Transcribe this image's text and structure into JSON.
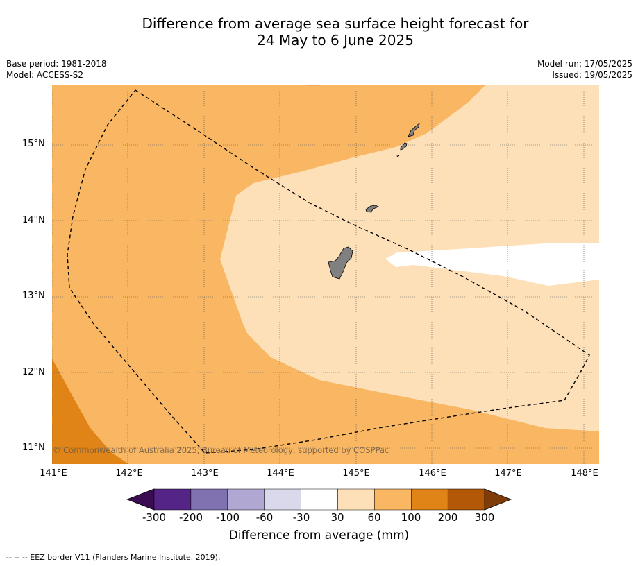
{
  "title_line1": "Difference from average sea surface height forecast for",
  "title_line2": "24 May to 6 June 2025",
  "meta": {
    "base_period": "Base period: 1981-2018",
    "model": "Model: ACCESS-S2",
    "model_run": "Model run: 17/05/2025",
    "issued": "Issued: 19/05/2025"
  },
  "lat_labels": [
    "15°N",
    "14°N",
    "13°N",
    "12°N",
    "11°N"
  ],
  "lon_labels": [
    "141°E",
    "142°E",
    "143°E",
    "144°E",
    "145°E",
    "146°E",
    "147°E",
    "148°E"
  ],
  "copyright": "© Commonwealth of Australia 2025, Bureau of Meteorology, supported by COSPPac",
  "colorbar": {
    "ticks": [
      "-300",
      "-200",
      "-100",
      "-60",
      "-30",
      "30",
      "60",
      "100",
      "200",
      "300"
    ],
    "colors": [
      "#3b0c52",
      "#552487",
      "#8071b1",
      "#b0a8d3",
      "#d9d9eb",
      "#ffffff",
      "#fde0b7",
      "#f9b663",
      "#e08418",
      "#b35806",
      "#7f3b08"
    ],
    "label": "Difference from average (mm)"
  },
  "footer": "--  --  -- EEZ border V11 (Flanders Marine Institute, 2019)."
}
